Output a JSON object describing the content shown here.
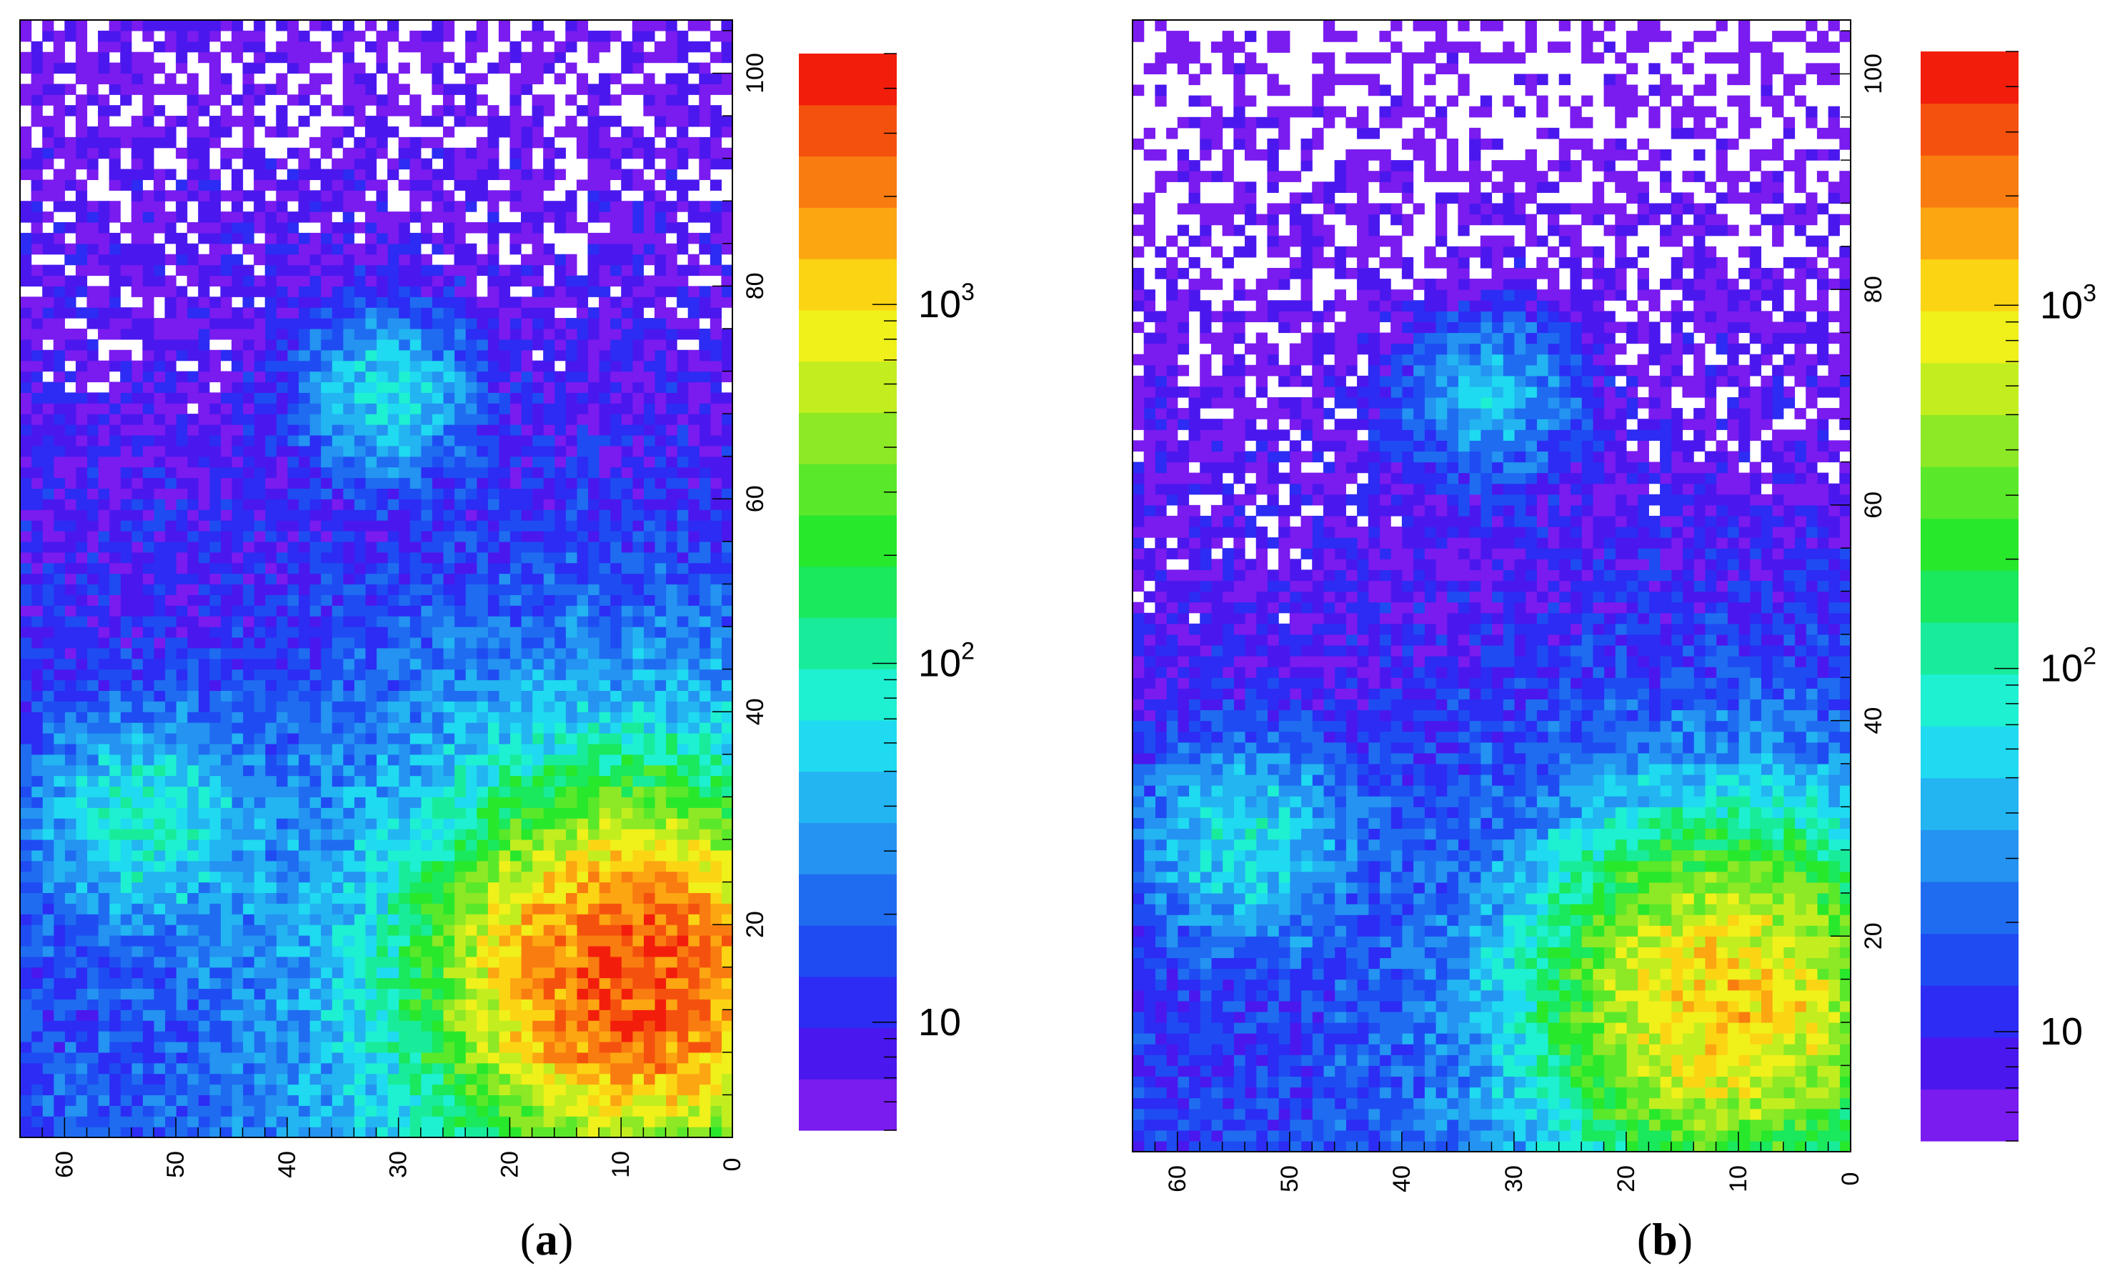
{
  "chart_data": [
    {
      "type": "heatmap",
      "panel_label": "a",
      "x_ticks": [
        0,
        10,
        20,
        30,
        40,
        50,
        60
      ],
      "y_ticks": [
        20,
        40,
        60,
        80,
        100
      ],
      "xlim": [
        0,
        64
      ],
      "ylim": [
        0,
        105
      ],
      "bins": {
        "nx": 64,
        "ny": 105
      },
      "z_scale": "log",
      "z_range": [
        5,
        5000
      ],
      "colorbar": {
        "labels": [
          {
            "value": 10,
            "base": "10",
            "exp": ""
          },
          {
            "value": 100,
            "base": "10",
            "exp": "2"
          },
          {
            "value": 1000,
            "base": "10",
            "exp": "3"
          }
        ]
      },
      "peaks": [
        {
          "x": 9,
          "y": 15,
          "counts": 3000
        },
        {
          "x": 53,
          "y": 30,
          "counts": 70
        },
        {
          "x": 31,
          "y": 70,
          "counts": 55
        }
      ],
      "background_counts_at_y0": 16,
      "background_counts_at_y105": 5,
      "grid": false,
      "legend": "none"
    },
    {
      "type": "heatmap",
      "panel_label": "b",
      "x_ticks": [
        0,
        10,
        20,
        30,
        40,
        50,
        60
      ],
      "y_ticks": [
        20,
        40,
        60,
        80,
        100
      ],
      "xlim": [
        0,
        64
      ],
      "ylim": [
        0,
        105
      ],
      "bins": {
        "nx": 64,
        "ny": 105
      },
      "z_scale": "log",
      "z_range": [
        5,
        5000
      ],
      "colorbar": {
        "labels": [
          {
            "value": 10,
            "base": "10",
            "exp": ""
          },
          {
            "value": 100,
            "base": "10",
            "exp": "2"
          },
          {
            "value": 1000,
            "base": "10",
            "exp": "3"
          }
        ]
      },
      "peaks": [
        {
          "x": 11,
          "y": 14,
          "counts": 1100
        },
        {
          "x": 54,
          "y": 29,
          "counts": 55
        },
        {
          "x": 32,
          "y": 70,
          "counts": 40
        }
      ],
      "background_counts_at_y0": 13,
      "background_counts_at_y105": 4,
      "grid": false,
      "legend": "none"
    }
  ],
  "palette": [
    "#7a1bef",
    "#4a18ee",
    "#2c2cf4",
    "#1e4cf2",
    "#1f6cf1",
    "#2493f1",
    "#23b4f2",
    "#1fdaf0",
    "#1ef0d2",
    "#18ec9a",
    "#1ae85d",
    "#28e82c",
    "#5ae82a",
    "#8de825",
    "#c2ee1f",
    "#f0f01a",
    "#fbd513",
    "#fca612",
    "#f97c10",
    "#f5510e",
    "#f31d0c"
  ]
}
